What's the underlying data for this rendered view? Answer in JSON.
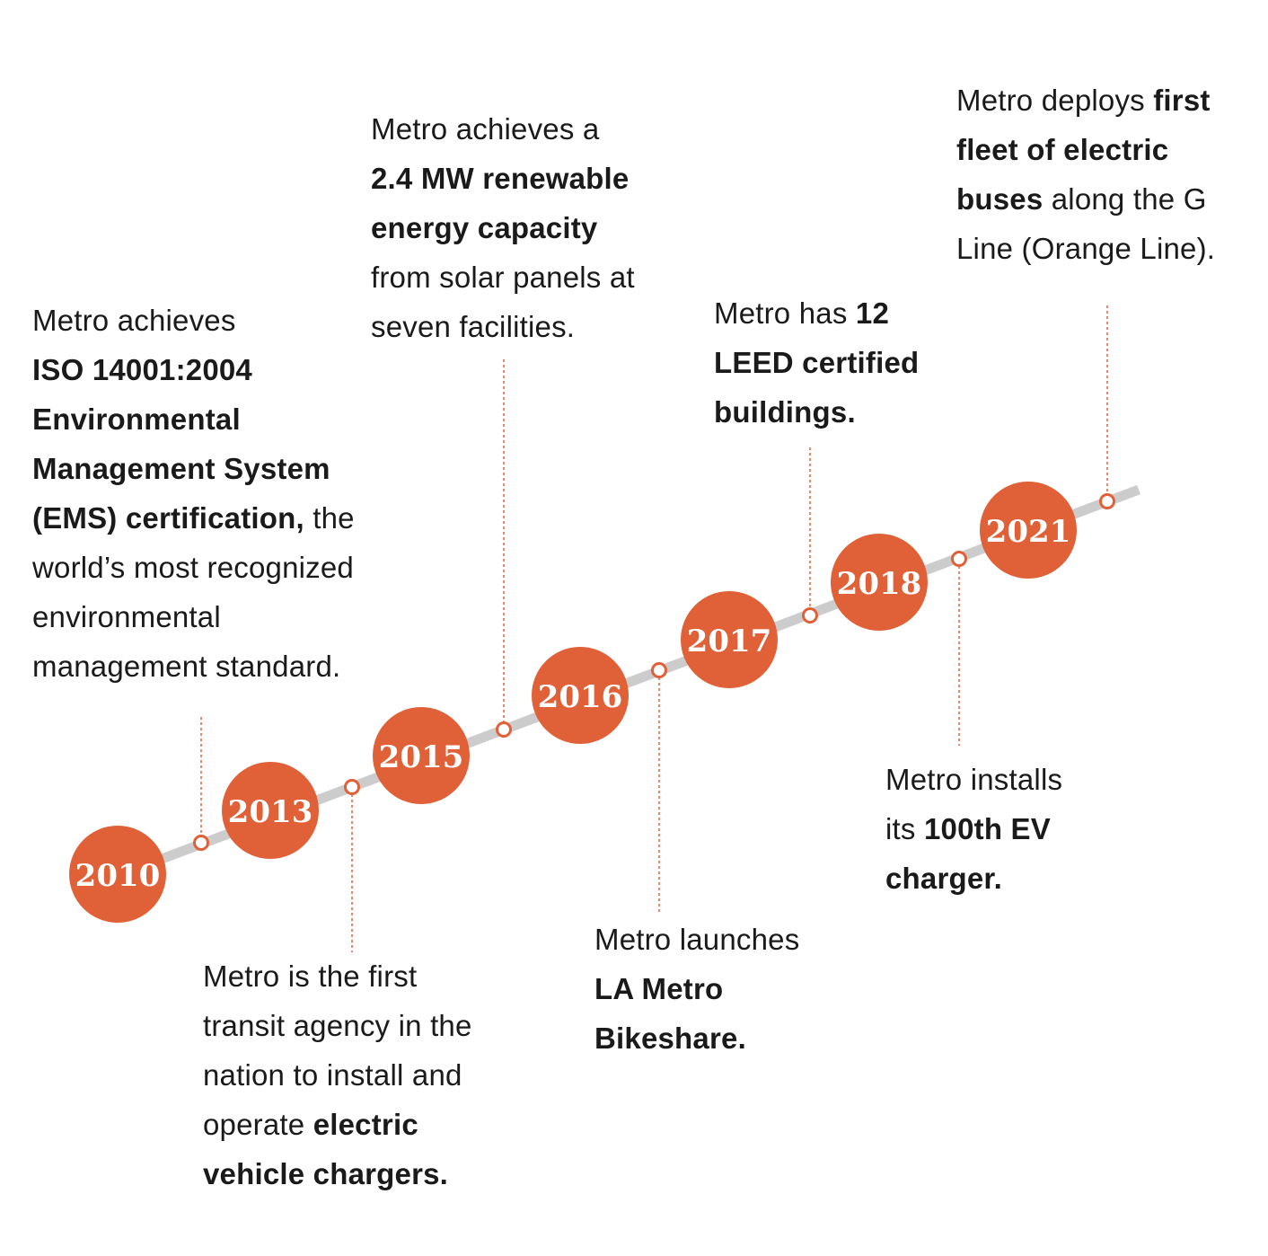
{
  "colors": {
    "accent": "#e06038",
    "track": "#cccccc",
    "text": "#1a1a1a",
    "background": "#ffffff"
  },
  "years": [
    "2010",
    "2013",
    "2015",
    "2016",
    "2017",
    "2018",
    "2021"
  ],
  "milestones": [
    {
      "id": "iso-certification",
      "parts": [
        {
          "text": "Metro achieves",
          "bold": false,
          "br": true
        },
        {
          "text": "ISO 14001:2004",
          "bold": true,
          "br": true
        },
        {
          "text": "Environmental",
          "bold": true,
          "br": true
        },
        {
          "text": "Management System",
          "bold": true,
          "br": true
        },
        {
          "text": "(EMS) certification,",
          "bold": true,
          "br": false
        },
        {
          "text": " the",
          "bold": false,
          "br": true
        },
        {
          "text": "world’s most recognized",
          "bold": false,
          "br": true
        },
        {
          "text": "environmental",
          "bold": false,
          "br": true
        },
        {
          "text": "management standard.",
          "bold": false,
          "br": false
        }
      ]
    },
    {
      "id": "ev-chargers-first",
      "parts": [
        {
          "text": "Metro is the first",
          "bold": false,
          "br": true
        },
        {
          "text": "transit agency in the",
          "bold": false,
          "br": true
        },
        {
          "text": "nation to install and",
          "bold": false,
          "br": true
        },
        {
          "text": "operate ",
          "bold": false,
          "br": false
        },
        {
          "text": "electric",
          "bold": true,
          "br": true
        },
        {
          "text": "vehicle chargers.",
          "bold": true,
          "br": false
        }
      ]
    },
    {
      "id": "renewable-energy",
      "parts": [
        {
          "text": "Metro achieves a",
          "bold": false,
          "br": true
        },
        {
          "text": "2.4 MW renewable",
          "bold": true,
          "br": true
        },
        {
          "text": "energy capacity",
          "bold": true,
          "br": true
        },
        {
          "text": "from solar panels at",
          "bold": false,
          "br": true
        },
        {
          "text": "seven facilities.",
          "bold": false,
          "br": false
        }
      ]
    },
    {
      "id": "bikeshare",
      "parts": [
        {
          "text": "Metro launches",
          "bold": false,
          "br": true
        },
        {
          "text": "LA Metro",
          "bold": true,
          "br": true
        },
        {
          "text": "Bikeshare.",
          "bold": true,
          "br": false
        }
      ]
    },
    {
      "id": "leed-buildings",
      "parts": [
        {
          "text": "Metro has ",
          "bold": false,
          "br": false
        },
        {
          "text": "12",
          "bold": true,
          "br": true
        },
        {
          "text": "LEED certified",
          "bold": true,
          "br": true
        },
        {
          "text": "buildings.",
          "bold": true,
          "br": false
        }
      ]
    },
    {
      "id": "ev-charger-100",
      "parts": [
        {
          "text": "Metro installs",
          "bold": false,
          "br": true
        },
        {
          "text": "its ",
          "bold": false,
          "br": false
        },
        {
          "text": "100th EV",
          "bold": true,
          "br": true
        },
        {
          "text": "charger.",
          "bold": true,
          "br": false
        }
      ]
    },
    {
      "id": "electric-buses",
      "parts": [
        {
          "text": "Metro deploys ",
          "bold": false,
          "br": false
        },
        {
          "text": "first",
          "bold": true,
          "br": true
        },
        {
          "text": "fleet of electric",
          "bold": true,
          "br": true
        },
        {
          "text": "buses",
          "bold": true,
          "br": false
        },
        {
          "text": " along the G",
          "bold": false,
          "br": true
        },
        {
          "text": "Line (Orange Line).",
          "bold": false,
          "br": false
        }
      ]
    }
  ]
}
